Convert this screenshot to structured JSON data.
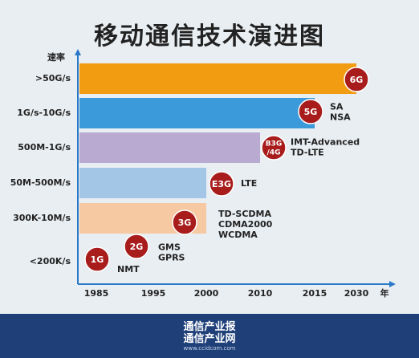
{
  "title": "移动通信技术演进图",
  "colors": {
    "background": "#e9eef2",
    "axis": "#2a78c8",
    "badge": "#a81c1c",
    "footer": "#1e3f78"
  },
  "chart_data": {
    "type": "bar",
    "orientation": "horizontal",
    "title": "移动通信技术演进图",
    "ylabel": "速率",
    "xlabel": "年",
    "x_ticks": [
      "1985",
      "1995",
      "2000",
      "2010",
      "2015",
      "2030"
    ],
    "categories": [
      ">50G/s",
      "1G/s-10G/s",
      "500M-1G/s",
      "50M-500M/s",
      "300K-10M/s",
      "<200K/s"
    ],
    "bars": [
      {
        "category": ">50G/s",
        "end_year": "2030",
        "generation": "6G",
        "standards": [],
        "color": "#f29c11"
      },
      {
        "category": "1G/s-10G/s",
        "end_year": "2015",
        "generation": "5G",
        "standards": [
          "SA",
          "NSA"
        ],
        "color": "#3b9ad9"
      },
      {
        "category": "500M-1G/s",
        "end_year": "2010",
        "generation": "B3G /4G",
        "standards": [
          "IMT-Advanced",
          "TD-LTE"
        ],
        "color": "#b9aad1"
      },
      {
        "category": "50M-500M/s",
        "end_year": "2000",
        "generation": "E3G",
        "standards": [
          "LTE"
        ],
        "color": "#a3c5e6"
      },
      {
        "category": "300K-10M/s",
        "end_year": "2000",
        "generation": "3G",
        "standards": [
          "TD-SCDMA",
          "CDMA2000",
          "WCDMA"
        ],
        "color": "#f6c9a3"
      },
      {
        "category": "<200K/s",
        "end_year": null,
        "generation": "2G",
        "standards": [
          "GMS",
          "GPRS"
        ],
        "color": null
      },
      {
        "category": "<200K/s",
        "end_year": null,
        "generation": "1G",
        "standards": [
          "NMT"
        ],
        "color": null
      }
    ]
  },
  "footer": {
    "line1": "通信产业报",
    "line2": "通信产业网",
    "url": "www.ccidcom.com"
  }
}
